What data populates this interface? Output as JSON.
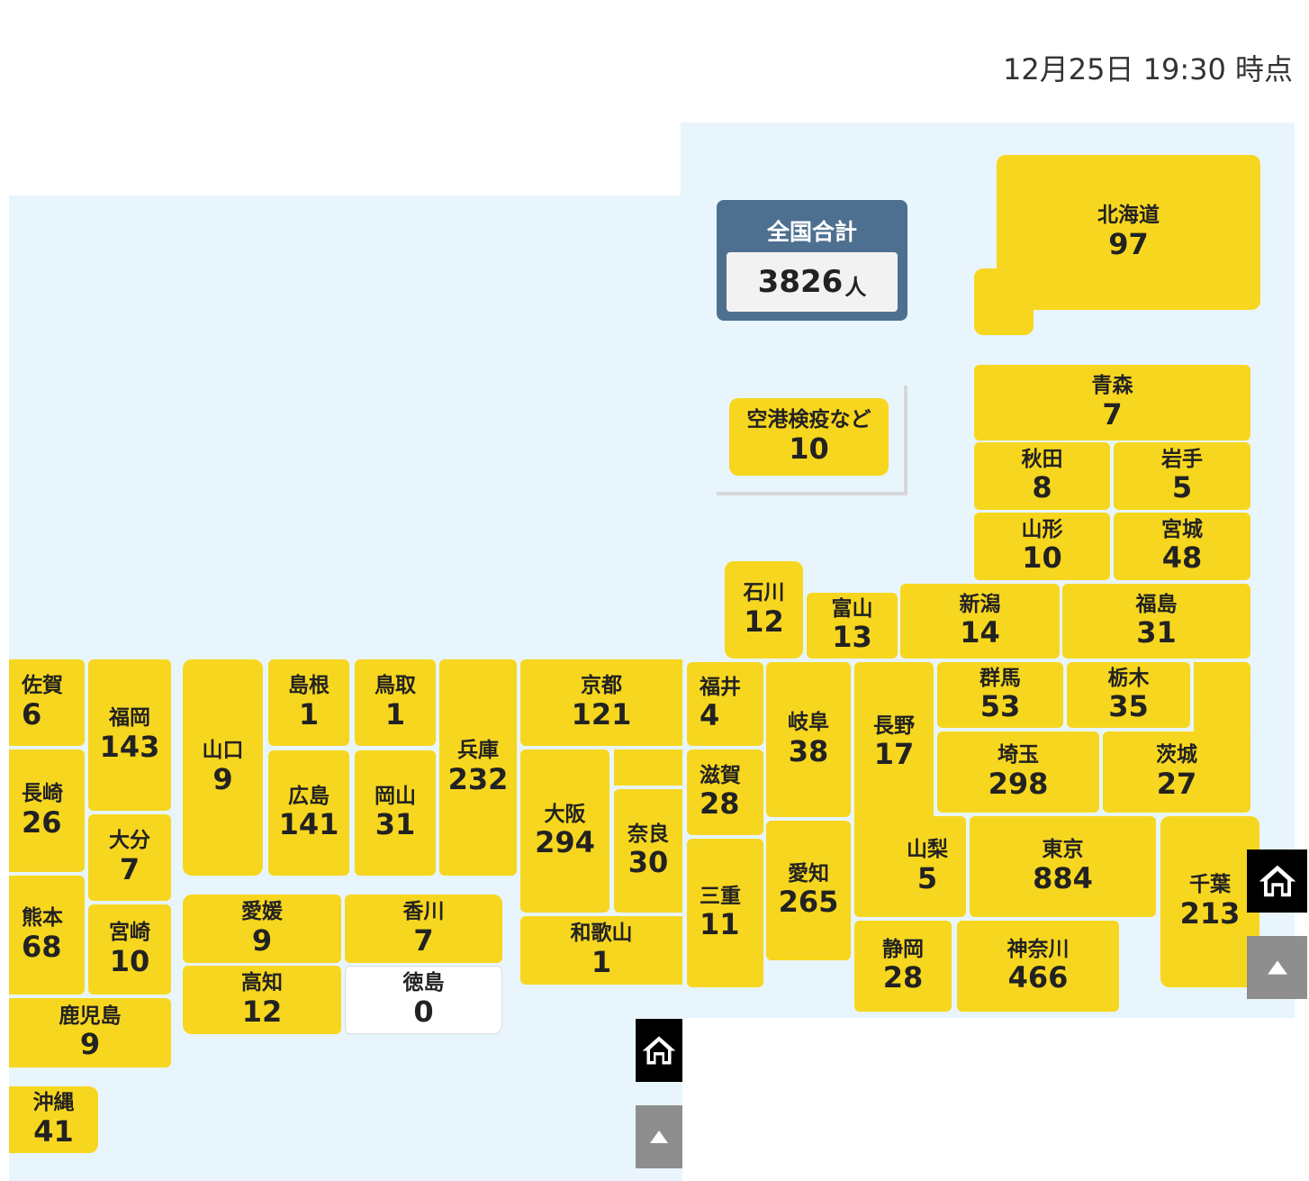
{
  "timestamp": "12月25日 19:30 時点",
  "total": {
    "label": "全国合計",
    "value": "3826",
    "unit": "人"
  },
  "airport": {
    "label": "空港検疫など",
    "value": "10"
  },
  "prefectures": {
    "hokkaido": {
      "name": "北海道",
      "value": "97"
    },
    "aomori": {
      "name": "青森",
      "value": "7"
    },
    "akita": {
      "name": "秋田",
      "value": "8"
    },
    "iwate": {
      "name": "岩手",
      "value": "5"
    },
    "yamagata": {
      "name": "山形",
      "value": "10"
    },
    "miyagi": {
      "name": "宮城",
      "value": "48"
    },
    "ishikawa": {
      "name": "石川",
      "value": "12"
    },
    "toyama": {
      "name": "富山",
      "value": "13"
    },
    "niigata": {
      "name": "新潟",
      "value": "14"
    },
    "fukushima": {
      "name": "福島",
      "value": "31"
    },
    "fukui": {
      "name": "福井",
      "value": "4"
    },
    "gifu": {
      "name": "岐阜",
      "value": "38"
    },
    "nagano": {
      "name": "長野",
      "value": "17"
    },
    "gunma": {
      "name": "群馬",
      "value": "53"
    },
    "tochigi": {
      "name": "栃木",
      "value": "35"
    },
    "saitama": {
      "name": "埼玉",
      "value": "298"
    },
    "ibaraki": {
      "name": "茨城",
      "value": "27"
    },
    "shiga": {
      "name": "滋賀",
      "value": "28"
    },
    "yamanashi": {
      "name": "山梨",
      "value": "5"
    },
    "tokyo": {
      "name": "東京",
      "value": "884"
    },
    "chiba": {
      "name": "千葉",
      "value": "213"
    },
    "mie": {
      "name": "三重",
      "value": "11"
    },
    "aichi": {
      "name": "愛知",
      "value": "265"
    },
    "shizuoka": {
      "name": "静岡",
      "value": "28"
    },
    "kanagawa": {
      "name": "神奈川",
      "value": "466"
    },
    "saga": {
      "name": "佐賀",
      "value": "6"
    },
    "fukuoka": {
      "name": "福岡",
      "value": "143"
    },
    "nagasaki": {
      "name": "長崎",
      "value": "26"
    },
    "oita": {
      "name": "大分",
      "value": "7"
    },
    "kumamoto": {
      "name": "熊本",
      "value": "68"
    },
    "miyazaki": {
      "name": "宮崎",
      "value": "10"
    },
    "kagoshima": {
      "name": "鹿児島",
      "value": "9"
    },
    "okinawa": {
      "name": "沖縄",
      "value": "41"
    },
    "yamaguchi": {
      "name": "山口",
      "value": "9"
    },
    "shimane": {
      "name": "島根",
      "value": "1"
    },
    "tottori": {
      "name": "鳥取",
      "value": "1"
    },
    "hiroshima": {
      "name": "広島",
      "value": "141"
    },
    "okayama": {
      "name": "岡山",
      "value": "31"
    },
    "hyogo": {
      "name": "兵庫",
      "value": "232"
    },
    "kyoto": {
      "name": "京都",
      "value": "121"
    },
    "osaka": {
      "name": "大阪",
      "value": "294"
    },
    "nara": {
      "name": "奈良",
      "value": "30"
    },
    "wakayama": {
      "name": "和歌山",
      "value": "1"
    },
    "ehime": {
      "name": "愛媛",
      "value": "9"
    },
    "kagawa": {
      "name": "香川",
      "value": "7"
    },
    "kochi": {
      "name": "高知",
      "value": "12"
    },
    "tokushima": {
      "name": "徳島",
      "value": "0"
    }
  },
  "colors": {
    "tile": "#f7d61f",
    "zero_tile": "#ffffff",
    "total_bg": "#4e7090",
    "map_bg": "#e8f5fc"
  },
  "icons": {
    "home": "home-icon",
    "up": "arrow-up-icon"
  }
}
